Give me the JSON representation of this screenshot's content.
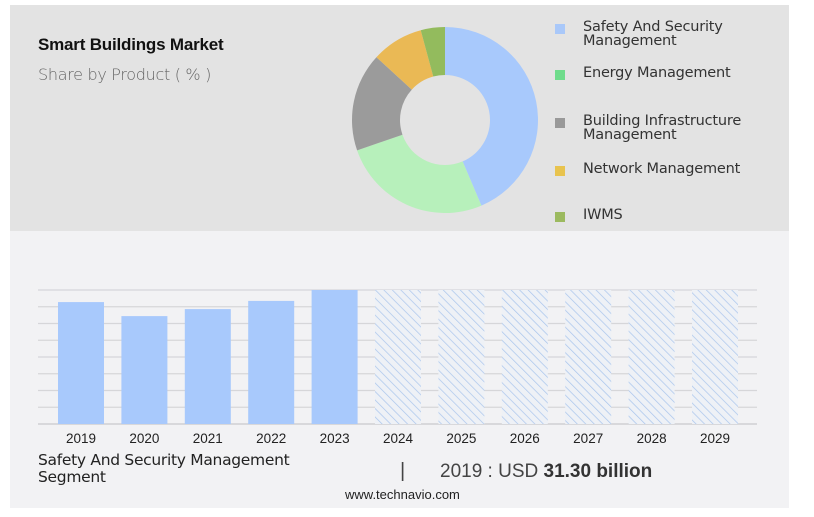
{
  "header": {
    "title": "Smart Buildings Market",
    "subtitle": "Share by Product ( % )"
  },
  "chart_data": [
    {
      "type": "pie",
      "variant": "donut",
      "title": "Smart Buildings Market - Share by Product (%)",
      "start": "top",
      "direction": "clockwise",
      "slices": [
        {
          "label": "Safety And Security Management",
          "value": 43.6,
          "color": "#a8c9fc",
          "legend_color": "#a9c8f9"
        },
        {
          "label": "Energy Management",
          "value": 26.1,
          "color": "#b7f0bb",
          "legend_color": "#6fdc8c"
        },
        {
          "label": "Building Infrastructure Management",
          "value": 17.1,
          "color": "#9b9b9b",
          "legend_color": "#999999"
        },
        {
          "label": "Network Management",
          "value": 9.0,
          "color": "#eab955",
          "legend_color": "#e8c34e"
        },
        {
          "label": "IWMS",
          "value": 4.2,
          "color": "#93bb5d",
          "legend_color": "#9cba5f"
        }
      ],
      "legend_position": "right"
    },
    {
      "type": "bar",
      "title": "Safety And Security Management Segment",
      "categories": [
        "2019",
        "2020",
        "2021",
        "2022",
        "2023",
        "2024",
        "2025",
        "2026",
        "2027",
        "2028",
        "2029"
      ],
      "values": [
        31.3,
        27.7,
        29.5,
        31.6,
        34.4,
        null,
        null,
        null,
        null,
        null,
        null
      ],
      "forecast_categories": [
        "2024",
        "2025",
        "2026",
        "2027",
        "2028",
        "2029"
      ],
      "forecast_style": "hatched-full-height",
      "unit": "USD billion",
      "ylim": [
        0,
        34.4
      ],
      "gridlines": 8,
      "grid": true,
      "bar_color": "#a8c9fc",
      "hatch_color": "#a8c4ec",
      "xlabel": "",
      "ylabel": ""
    }
  ],
  "footer": {
    "segment_label": "Safety And Security Management Segment",
    "divider": "|",
    "value_prefix": "2019 : USD ",
    "value_bold": "31.30 billion",
    "source": "www.technavio.com"
  }
}
